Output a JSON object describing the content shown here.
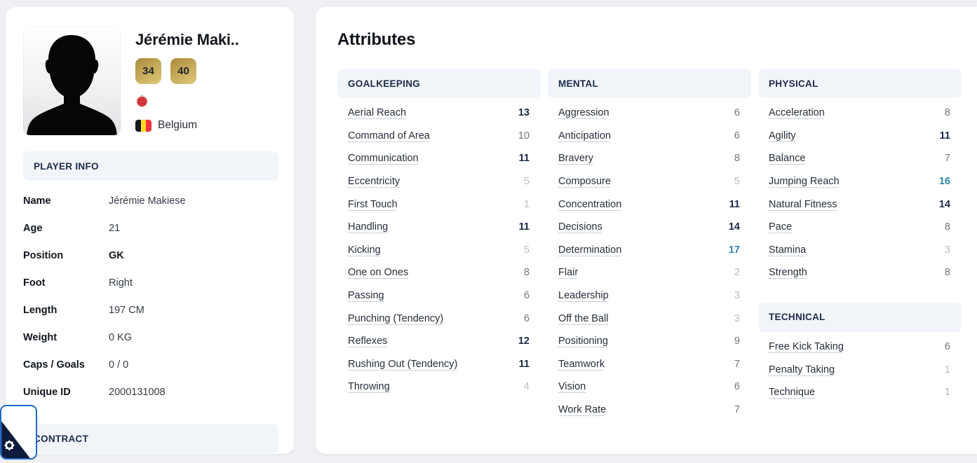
{
  "colors": {
    "accent_blue": "#2068c8",
    "value_excellent": "#2f84ad",
    "value_good": "#1b2a44",
    "value_average": "#6e7680",
    "value_low": "#b6bcc4",
    "header_text": "#1c2b4a",
    "section_bg": "#f1f5f9",
    "badge_gold_dark": "#aa8b3b",
    "badge_gold_light": "#dac272"
  },
  "sidebar": {
    "player": {
      "display_name": "Jérémie Maki..",
      "photo_icon": "player-silhouette",
      "badges": [
        {
          "value": "34"
        },
        {
          "value": "40"
        }
      ],
      "club_icon": "tomato-crest",
      "flag_icon": "belgium-flag",
      "nationality": "Belgium"
    },
    "player_info": {
      "title": "PLAYER INFO",
      "rows": [
        {
          "label": "Name",
          "value": "Jérémie Makiese",
          "bold": false
        },
        {
          "label": "Age",
          "value": "21",
          "bold": false
        },
        {
          "label": "Position",
          "value": "GK",
          "bold": true
        },
        {
          "label": "Foot",
          "value": "Right",
          "bold": false
        },
        {
          "label": "Length",
          "value": "197 CM",
          "bold": false
        },
        {
          "label": "Weight",
          "value": "0 KG",
          "bold": false
        },
        {
          "label": "Caps / Goals",
          "value": "0 / 0",
          "bold": false
        },
        {
          "label": "Unique ID",
          "value": "2000131008",
          "bold": false
        }
      ]
    },
    "contract": {
      "title": "CONTRACT"
    }
  },
  "main": {
    "title": "Attributes",
    "value_tiers": {
      "excellent_min": 16,
      "good_min": 11,
      "average_min": 6
    },
    "columns": [
      [
        {
          "name": "GOALKEEPING",
          "attributes": [
            {
              "label": "Aerial Reach",
              "value": 13
            },
            {
              "label": "Command of Area",
              "value": 10
            },
            {
              "label": "Communication",
              "value": 11
            },
            {
              "label": "Eccentricity",
              "value": 5
            },
            {
              "label": "First Touch",
              "value": 1
            },
            {
              "label": "Handling",
              "value": 11
            },
            {
              "label": "Kicking",
              "value": 5
            },
            {
              "label": "One on Ones",
              "value": 8
            },
            {
              "label": "Passing",
              "value": 6
            },
            {
              "label": "Punching (Tendency)",
              "value": 6
            },
            {
              "label": "Reflexes",
              "value": 12
            },
            {
              "label": "Rushing Out (Tendency)",
              "value": 11
            },
            {
              "label": "Throwing",
              "value": 4
            }
          ]
        }
      ],
      [
        {
          "name": "MENTAL",
          "attributes": [
            {
              "label": "Aggression",
              "value": 6
            },
            {
              "label": "Anticipation",
              "value": 6
            },
            {
              "label": "Bravery",
              "value": 8
            },
            {
              "label": "Composure",
              "value": 5
            },
            {
              "label": "Concentration",
              "value": 11
            },
            {
              "label": "Decisions",
              "value": 14
            },
            {
              "label": "Determination",
              "value": 17
            },
            {
              "label": "Flair",
              "value": 2
            },
            {
              "label": "Leadership",
              "value": 3
            },
            {
              "label": "Off the Ball",
              "value": 3
            },
            {
              "label": "Positioning",
              "value": 9
            },
            {
              "label": "Teamwork",
              "value": 7
            },
            {
              "label": "Vision",
              "value": 6
            },
            {
              "label": "Work Rate",
              "value": 7
            }
          ]
        }
      ],
      [
        {
          "name": "PHYSICAL",
          "attributes": [
            {
              "label": "Acceleration",
              "value": 8
            },
            {
              "label": "Agility",
              "value": 11
            },
            {
              "label": "Balance",
              "value": 7
            },
            {
              "label": "Jumping Reach",
              "value": 16
            },
            {
              "label": "Natural Fitness",
              "value": 14
            },
            {
              "label": "Pace",
              "value": 8
            },
            {
              "label": "Stamina",
              "value": 3
            },
            {
              "label": "Strength",
              "value": 8
            }
          ]
        },
        {
          "name": "TECHNICAL",
          "attributes": [
            {
              "label": "Free Kick Taking",
              "value": 6
            },
            {
              "label": "Penalty Taking",
              "value": 1
            },
            {
              "label": "Technique",
              "value": 1
            }
          ]
        }
      ]
    ]
  }
}
